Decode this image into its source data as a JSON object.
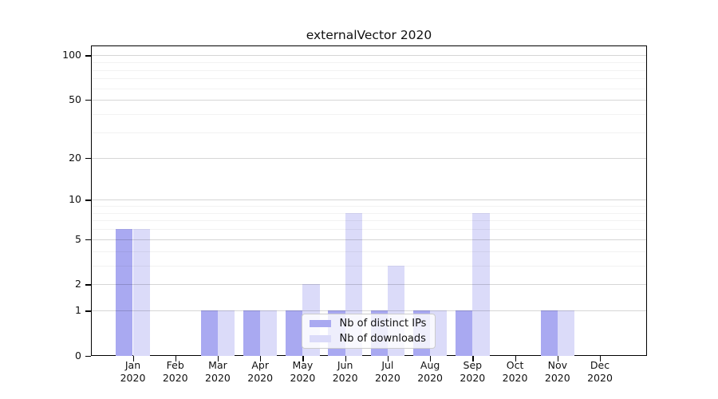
{
  "title": "externalVector 2020",
  "chart_data": {
    "type": "bar",
    "title": "externalVector 2020",
    "categories": [
      "Jan",
      "Feb",
      "Mar",
      "Apr",
      "May",
      "Jun",
      "Jul",
      "Aug",
      "Sep",
      "Oct",
      "Nov",
      "Dec"
    ],
    "year": "2020",
    "series": [
      {
        "name": "Nb of distinct IPs",
        "values": [
          6,
          0,
          1,
          1,
          1,
          1,
          1,
          1,
          1,
          0,
          1,
          0
        ]
      },
      {
        "name": "Nb of downloads",
        "values": [
          6,
          0,
          1,
          1,
          2,
          8,
          3,
          1,
          8,
          0,
          1,
          0
        ]
      }
    ],
    "yscale": "log1p",
    "yticks": [
      0,
      1,
      2,
      5,
      10,
      20,
      50,
      100
    ],
    "minor_gridlines": [
      3,
      4,
      6,
      7,
      8,
      9,
      30,
      40,
      60,
      70,
      80,
      90
    ],
    "ylim": [
      0,
      117
    ],
    "grid": "on",
    "legend_position": "lower-center-inside",
    "xlabel": "",
    "ylabel": ""
  },
  "colors": {
    "bar_distinct_ips": "#a9a9f1",
    "bar_downloads": "#dbdbf9",
    "grid_major": "rgba(0,0,0,0.16)",
    "grid_minor": "rgba(0,0,0,0.05)",
    "axis": "#000000",
    "text": "#111111",
    "legend_border": "#cccccc"
  }
}
